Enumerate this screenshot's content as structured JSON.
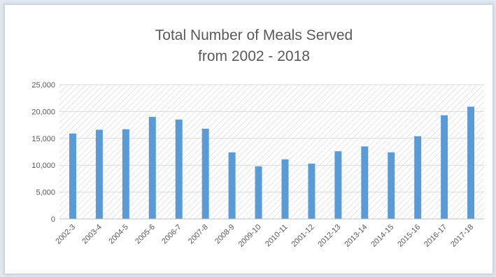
{
  "chart_data": {
    "type": "bar",
    "title_lines": [
      "Total Number of Meals Served",
      "from 2002 - 2018"
    ],
    "xlabel": "",
    "ylabel": "",
    "categories": [
      "2002-3",
      "2003-4",
      "2004-5",
      "2005-6",
      "2006-7",
      "2007-8",
      "2008-9",
      "2009-10",
      "2010-11",
      "2001-12",
      "2012-13",
      "2013-14",
      "2014-15",
      "2015-16",
      "2016-17",
      "2017-18"
    ],
    "values": [
      15900,
      16600,
      16700,
      19000,
      18500,
      16800,
      12400,
      9800,
      11100,
      10300,
      12600,
      13500,
      12400,
      15400,
      19300,
      20900
    ],
    "ylim": [
      0,
      25000
    ],
    "yticks": [
      0,
      5000,
      10000,
      15000,
      20000,
      25000
    ],
    "ytick_labels": [
      "0",
      "5,000",
      "10,000",
      "15,000",
      "20,000",
      "25,000"
    ],
    "grid": true,
    "legend": "none",
    "colors": {
      "bar": "#5b9bd5",
      "plot_fill_pattern": "#d6d6d6",
      "grid": "#d9d9d9",
      "text": "#595959"
    }
  }
}
